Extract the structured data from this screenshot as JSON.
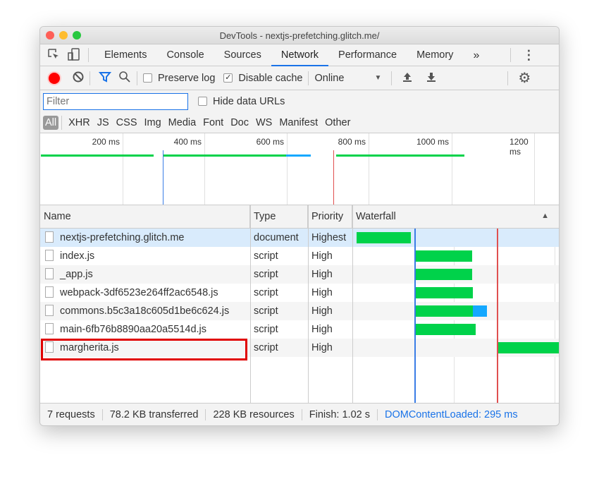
{
  "window": {
    "title": "DevTools - nextjs-prefetching.glitch.me/"
  },
  "tabs": [
    {
      "label": "Elements"
    },
    {
      "label": "Console"
    },
    {
      "label": "Sources"
    },
    {
      "label": "Network",
      "active": true
    },
    {
      "label": "Performance"
    },
    {
      "label": "Memory"
    }
  ],
  "tabs_more": "»",
  "toolbar": {
    "preserve_log": "Preserve log",
    "preserve_log_checked": false,
    "disable_cache": "Disable cache",
    "disable_cache_checked": true,
    "throttle": "Online"
  },
  "filter": {
    "placeholder": "Filter",
    "value": "",
    "hide_data_urls": "Hide data URLs"
  },
  "types": [
    "All",
    "XHR",
    "JS",
    "CSS",
    "Img",
    "Media",
    "Font",
    "Doc",
    "WS",
    "Manifest",
    "Other"
  ],
  "overview": {
    "ticks": [
      "200 ms",
      "400 ms",
      "600 ms",
      "800 ms",
      "1000 ms",
      "1200 ms"
    ]
  },
  "columns": {
    "name": "Name",
    "type": "Type",
    "priority": "Priority",
    "waterfall": "Waterfall"
  },
  "rows": [
    {
      "name": "nextjs-prefetching.glitch.me",
      "type": "document",
      "priority": "Highest"
    },
    {
      "name": "index.js",
      "type": "script",
      "priority": "High"
    },
    {
      "name": "_app.js",
      "type": "script",
      "priority": "High"
    },
    {
      "name": "webpack-3df6523e264ff2ac6548.js",
      "type": "script",
      "priority": "High"
    },
    {
      "name": "commons.b5c3a18c605d1be6c624.js",
      "type": "script",
      "priority": "High"
    },
    {
      "name": "main-6fb76b8890aa20a5514d.js",
      "type": "script",
      "priority": "High"
    },
    {
      "name": "margherita.js",
      "type": "script",
      "priority": "High",
      "highlighted": true
    }
  ],
  "status": {
    "requests": "7 requests",
    "transferred": "78.2 KB transferred",
    "resources": "228 KB resources",
    "finish": "Finish: 1.02 s",
    "dcl": "DOMContentLoaded: 295 ms"
  },
  "colors": {
    "accent": "#1a73e8",
    "waiting": "#00d24a",
    "download": "#14a8ff",
    "dcl_line": "#3a7de6",
    "load_line": "#e05050",
    "highlight": "#e00000"
  }
}
